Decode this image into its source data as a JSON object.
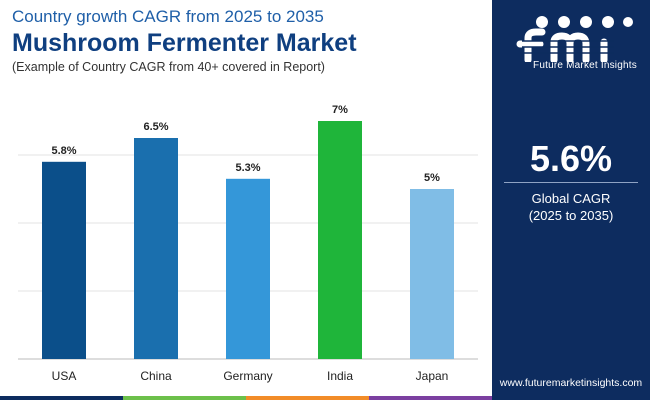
{
  "header": {
    "subtitle": "Country growth CAGR from 2025 to 2035",
    "title": "Mushroom Fermenter Market",
    "note": "(Example of Country CAGR from 40+ covered in Report)"
  },
  "chart_data": {
    "type": "bar",
    "categories": [
      "USA",
      "China",
      "Germany",
      "India",
      "Japan"
    ],
    "values": [
      5.8,
      6.5,
      5.3,
      7,
      5
    ],
    "value_labels": [
      "5.8%",
      "6.5%",
      "5.3%",
      "7%",
      "5%"
    ],
    "bar_colors": [
      "#0b4f8a",
      "#1a6fae",
      "#3497d9",
      "#1fb53a",
      "#80bde6"
    ],
    "ylim": [
      0,
      7.5
    ],
    "grid": true,
    "title": "",
    "xlabel": "",
    "ylabel": ""
  },
  "side_panel": {
    "logo_text": "Future Market Insights",
    "big_value": "5.6%",
    "metric_label": "Global CAGR",
    "metric_period": "(2025 to 2035)",
    "website": "www.futuremarketinsights.com",
    "background": "#0d2c5f"
  },
  "bottom_bar_colors": [
    "#0d2c5f",
    "#6cc04a",
    "#f28c28",
    "#7b3fa0"
  ]
}
